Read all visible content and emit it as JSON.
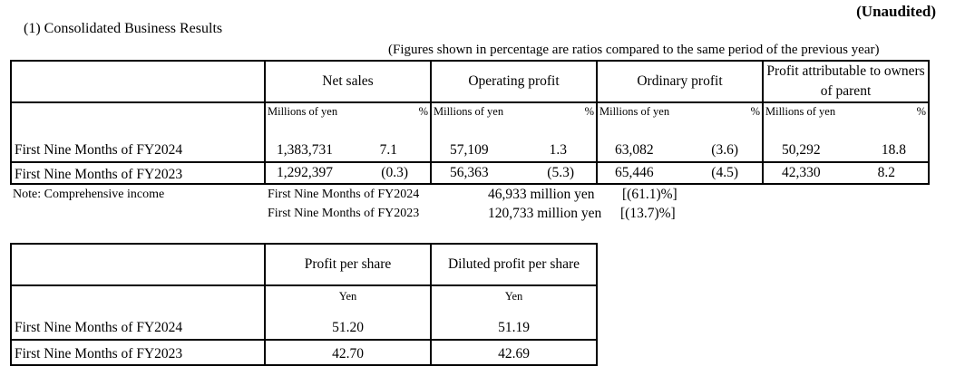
{
  "unaudited": "(Unaudited)",
  "section_title": "(1) Consolidated Business Results",
  "figures_note": "(Figures shown in percentage are ratios compared to the same period of the previous year)",
  "results_table": {
    "headers": [
      "Net sales",
      "Operating profit",
      "Ordinary profit",
      "Profit attributable to owners of parent"
    ],
    "unit_left": "Millions of yen",
    "unit_right": "%",
    "rows": [
      {
        "label": "First Nine Months of FY2024",
        "values": [
          {
            "amount": "1,383,731",
            "pct": "7.1"
          },
          {
            "amount": "57,109",
            "pct": "1.3"
          },
          {
            "amount": "63,082",
            "pct": "(3.6)"
          },
          {
            "amount": "50,292",
            "pct": "18.8"
          }
        ]
      },
      {
        "label": "First Nine Months of FY2023",
        "values": [
          {
            "amount": "1,292,397",
            "pct": "(0.3)"
          },
          {
            "amount": "56,363",
            "pct": "(5.3)"
          },
          {
            "amount": "65,446",
            "pct": "(4.5)"
          },
          {
            "amount": "42,330",
            "pct": "8.2"
          }
        ]
      }
    ]
  },
  "comprehensive_income": {
    "label": "Note: Comprehensive income",
    "lines": [
      {
        "period": "First Nine Months of FY2024",
        "amount": "46,933 million yen",
        "pct": "[(61.1)%]"
      },
      {
        "period": "First Nine Months of FY2023",
        "amount": "120,733 million yen",
        "pct": "[(13.7)%]"
      }
    ]
  },
  "per_share_table": {
    "headers": [
      "Profit per share",
      "Diluted profit per share"
    ],
    "unit": "Yen",
    "rows": [
      {
        "label": "First Nine Months of FY2024",
        "values": [
          "51.20",
          "51.19"
        ]
      },
      {
        "label": "First Nine Months of FY2023",
        "values": [
          "42.70",
          "42.69"
        ]
      }
    ]
  }
}
